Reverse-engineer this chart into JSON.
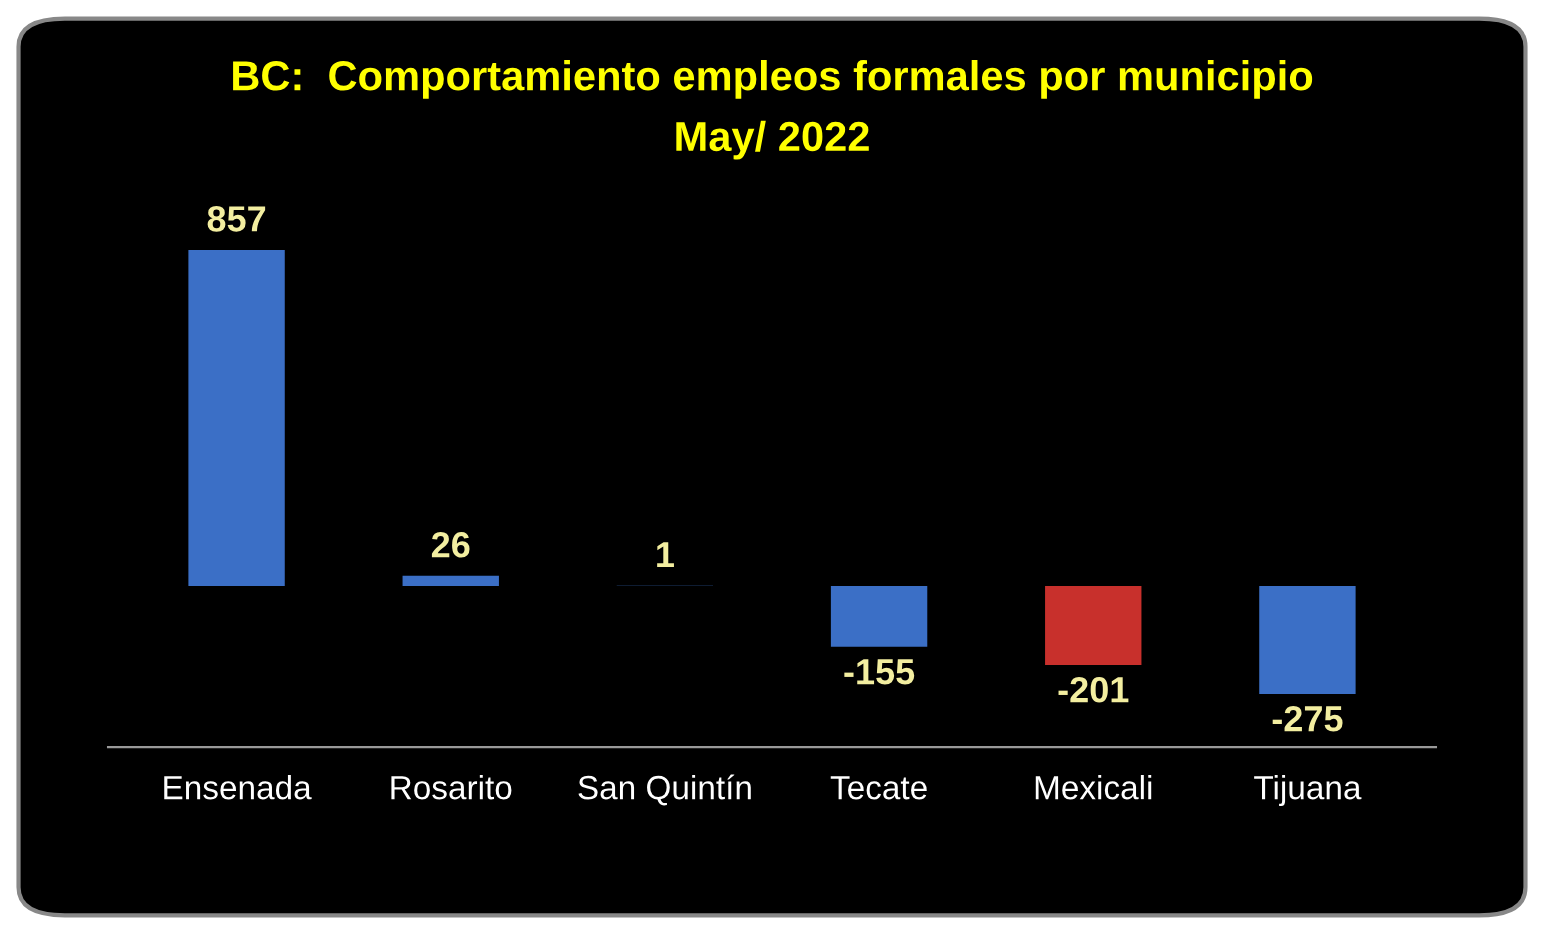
{
  "chart_data": {
    "type": "bar",
    "title": "BC:  Comportamiento empleos formales por municipio",
    "subtitle": "May/ 2022",
    "categories": [
      "Ensenada",
      "Rosarito",
      "San Quintín",
      "Tecate",
      "Mexicali",
      "Tijuana"
    ],
    "values": [
      857,
      26,
      1,
      -155,
      -201,
      -275
    ],
    "colors": [
      "#3b6fc6",
      "#3b6fc6",
      "#3b6fc6",
      "#3b6fc6",
      "#c8302c",
      "#3b6fc6"
    ],
    "data_labels": true,
    "grid": false,
    "legend": false
  }
}
